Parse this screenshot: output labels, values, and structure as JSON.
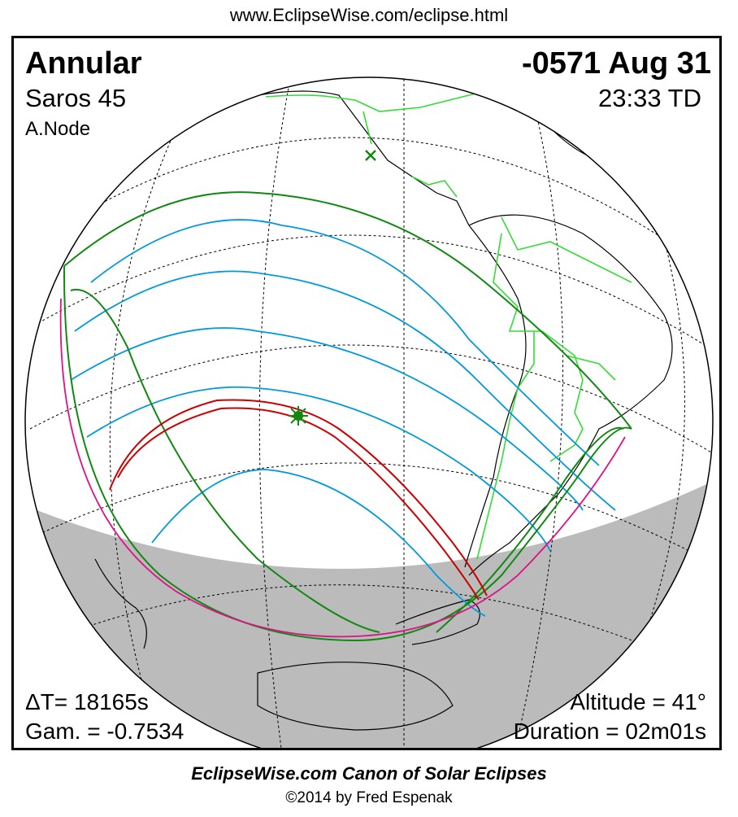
{
  "header": {
    "url": "www.EclipseWise.com/eclipse.html"
  },
  "eclipse": {
    "type": "Annular",
    "date": "-0571 Aug 31",
    "saros": "Saros  45",
    "time": "23:33 TD",
    "node": "A.Node",
    "delta_t": "ΔT=  18165s",
    "gamma": "Gam. = -0.7534",
    "altitude": "Altitude = 41°",
    "duration": "Duration = 02m01s"
  },
  "map": {
    "colors": {
      "land_borders": "#33dd33",
      "penumbra_limits": "#118811",
      "penumbra_grid": "#0099dd",
      "antumbra_path": "#cc0000",
      "rise_set_limit": "#dd1188",
      "night_side": "#bbbbbb"
    },
    "markers": {
      "subsolar_point": "x",
      "greatest_eclipse": "star"
    }
  },
  "footer": {
    "title": "EclipseWise.com Canon of Solar Eclipses",
    "copyright": "©2014 by Fred Espenak"
  }
}
